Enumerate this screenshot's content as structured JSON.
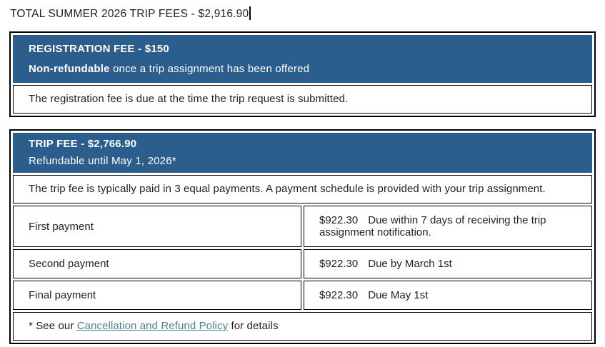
{
  "page": {
    "title": "TOTAL SUMMER 2026 TRIP FEES - $2,916.90"
  },
  "colors": {
    "table_header_bg": "#2b5d8d",
    "link": "#4e7f91",
    "border": "#000000",
    "text": "#1f1f1f"
  },
  "registration_table": {
    "header": {
      "line1": "REGISTRATION FEE - $150",
      "line2_bold": "Non-refundable",
      "line2_rest": " once a trip assignment has been offered"
    },
    "body": "The registration fee is due at the time the trip request is submitted."
  },
  "trip_table": {
    "header": {
      "line1": "TRIP FEE - $2,766.90",
      "line2": "Refundable until May 1, 2026*"
    },
    "intro": "The trip fee is typically paid in 3 equal payments. A payment schedule is provided with your trip assignment.",
    "payments": [
      {
        "label": "First payment",
        "amount": "$922.30",
        "due": "Due within 7 days of receiving the trip assignment notification."
      },
      {
        "label": "Second payment",
        "amount": "$922.30",
        "due": "Due by March 1st"
      },
      {
        "label": "Final payment",
        "amount": "$922.30",
        "due": "Due May 1st"
      }
    ],
    "footnote": {
      "prefix": "* See our ",
      "link_text": "Cancellation and Refund Policy",
      "suffix": " for details"
    }
  }
}
